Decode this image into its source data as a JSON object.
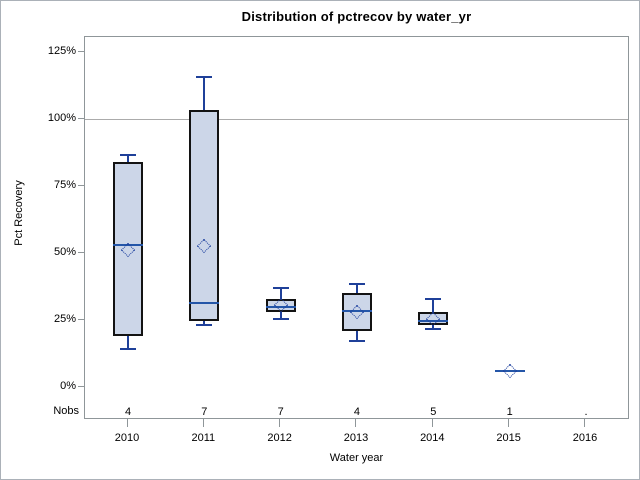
{
  "chart_data": {
    "type": "boxplot",
    "title": "Distribution of pctrecov by water_yr",
    "xlabel": "Water year",
    "ylabel": "Pct Recovery",
    "nobs_label": "Nobs",
    "categories": [
      "2010",
      "2011",
      "2012",
      "2013",
      "2014",
      "2015",
      "2016"
    ],
    "nobs": [
      "4",
      "7",
      "7",
      "4",
      "5",
      "1",
      "."
    ],
    "ytick_values": [
      0,
      25,
      50,
      75,
      100,
      125
    ],
    "ytick_labels": [
      "0%",
      "25%",
      "50%",
      "75%",
      "100%",
      "125%"
    ],
    "ylim": [
      -12,
      131
    ],
    "reference_line_pct": 100,
    "grid": "horizontal reference line at 100% only",
    "legend": "none",
    "boxes": [
      {
        "category": "2010",
        "low": 14,
        "q1": 19,
        "median": 53,
        "mean": 51,
        "q3": 84,
        "high": 86.5
      },
      {
        "category": "2011",
        "low": 23,
        "q1": 24.5,
        "median": 31.5,
        "mean": 52.5,
        "q3": 103.5,
        "high": 115.5
      },
      {
        "category": "2012",
        "low": 25.5,
        "q1": 28,
        "median": 30,
        "mean": 30.5,
        "q3": 33,
        "high": 37
      },
      {
        "category": "2013",
        "low": 17,
        "q1": 21,
        "median": 28.5,
        "mean": 28,
        "q3": 35,
        "high": 38.5
      },
      {
        "category": "2014",
        "low": 21.5,
        "q1": 23,
        "median": 24.5,
        "mean": 25.5,
        "q3": 28,
        "high": 33
      },
      {
        "category": "2015",
        "low": null,
        "q1": null,
        "median": 6,
        "mean": 6,
        "q3": null,
        "high": null
      },
      {
        "category": "2016",
        "low": null,
        "q1": null,
        "median": null,
        "mean": null,
        "q3": null,
        "high": null
      }
    ],
    "colors": {
      "box_fill": "#ccd6e8",
      "box_border": "#131313",
      "whisker": "#1f4099",
      "median": "#2456a8",
      "mean_marker": "#1c3f9e",
      "reference_line": "#ababab",
      "axis": "#8f9699",
      "text": "#000000",
      "figure_border": "#abb1b8",
      "background": "#ffffff"
    }
  }
}
